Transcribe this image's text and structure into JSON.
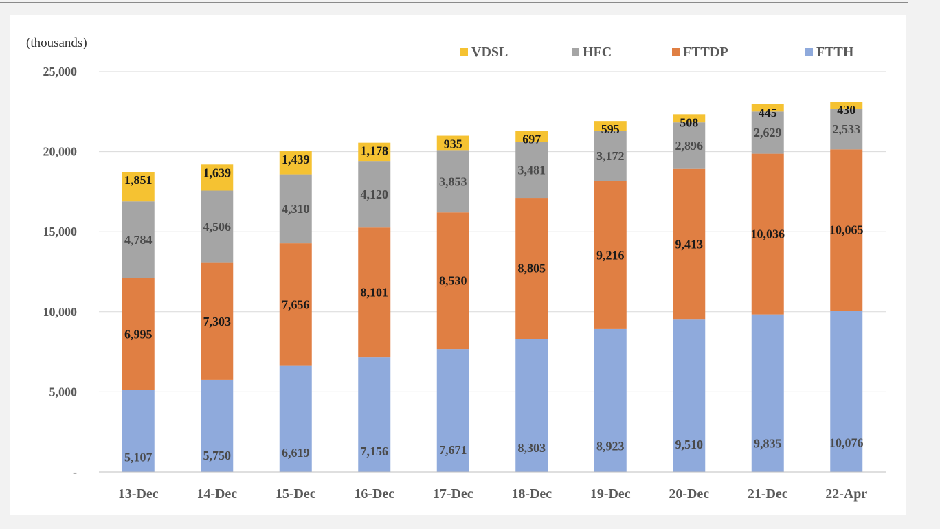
{
  "chart_data": {
    "type": "bar",
    "stacked": true,
    "units_label": "(thousands)",
    "categories": [
      "13-Dec",
      "14-Dec",
      "15-Dec",
      "16-Dec",
      "17-Dec",
      "18-Dec",
      "19-Dec",
      "20-Dec",
      "21-Dec",
      "22-Apr"
    ],
    "series": [
      {
        "name": "FTTH",
        "color": "#8faadc",
        "values": [
          5107,
          5750,
          6619,
          7156,
          7671,
          8303,
          8923,
          9510,
          9835,
          10076
        ],
        "labels": [
          "5,107",
          "5,750",
          "6,619",
          "7,156",
          "7,671",
          "8,303",
          "8,923",
          "9,510",
          "9,835",
          "10,076"
        ]
      },
      {
        "name": "FTTDP",
        "color": "#e07f43",
        "values": [
          6995,
          7303,
          7656,
          8101,
          8530,
          8805,
          9216,
          9413,
          10036,
          10065
        ],
        "labels": [
          "6,995",
          "7,303",
          "7,656",
          "8,101",
          "8,530",
          "8,805",
          "9,216",
          "9,413",
          "10,036",
          "10,065"
        ]
      },
      {
        "name": "HFC",
        "color": "#a5a5a5",
        "values": [
          4784,
          4506,
          4310,
          4120,
          3853,
          3481,
          3172,
          2896,
          2629,
          2533
        ],
        "labels": [
          "4,784",
          "4,506",
          "4,310",
          "4,120",
          "3,853",
          "3,481",
          "3,172",
          "2,896",
          "2,629",
          "2,533"
        ]
      },
      {
        "name": "VDSL",
        "color": "#f5c232",
        "values": [
          1851,
          1639,
          1439,
          1178,
          935,
          697,
          595,
          508,
          445,
          430
        ],
        "labels": [
          "1,851",
          "1,639",
          "1,439",
          "1,178",
          "935",
          "697",
          "595",
          "508",
          "445",
          "430"
        ]
      }
    ],
    "legend_order": [
      "VDSL",
      "HFC",
      "FTTDP",
      "FTTH"
    ],
    "legend_position": "top",
    "ylim": [
      0,
      25000
    ],
    "yticks": [
      0,
      5000,
      10000,
      15000,
      20000,
      25000
    ],
    "ytick_labels": [
      "-",
      "5,000",
      "10,000",
      "15,000",
      "20,000",
      "25,000"
    ],
    "grid": true,
    "title": "",
    "xlabel": "",
    "ylabel": ""
  }
}
